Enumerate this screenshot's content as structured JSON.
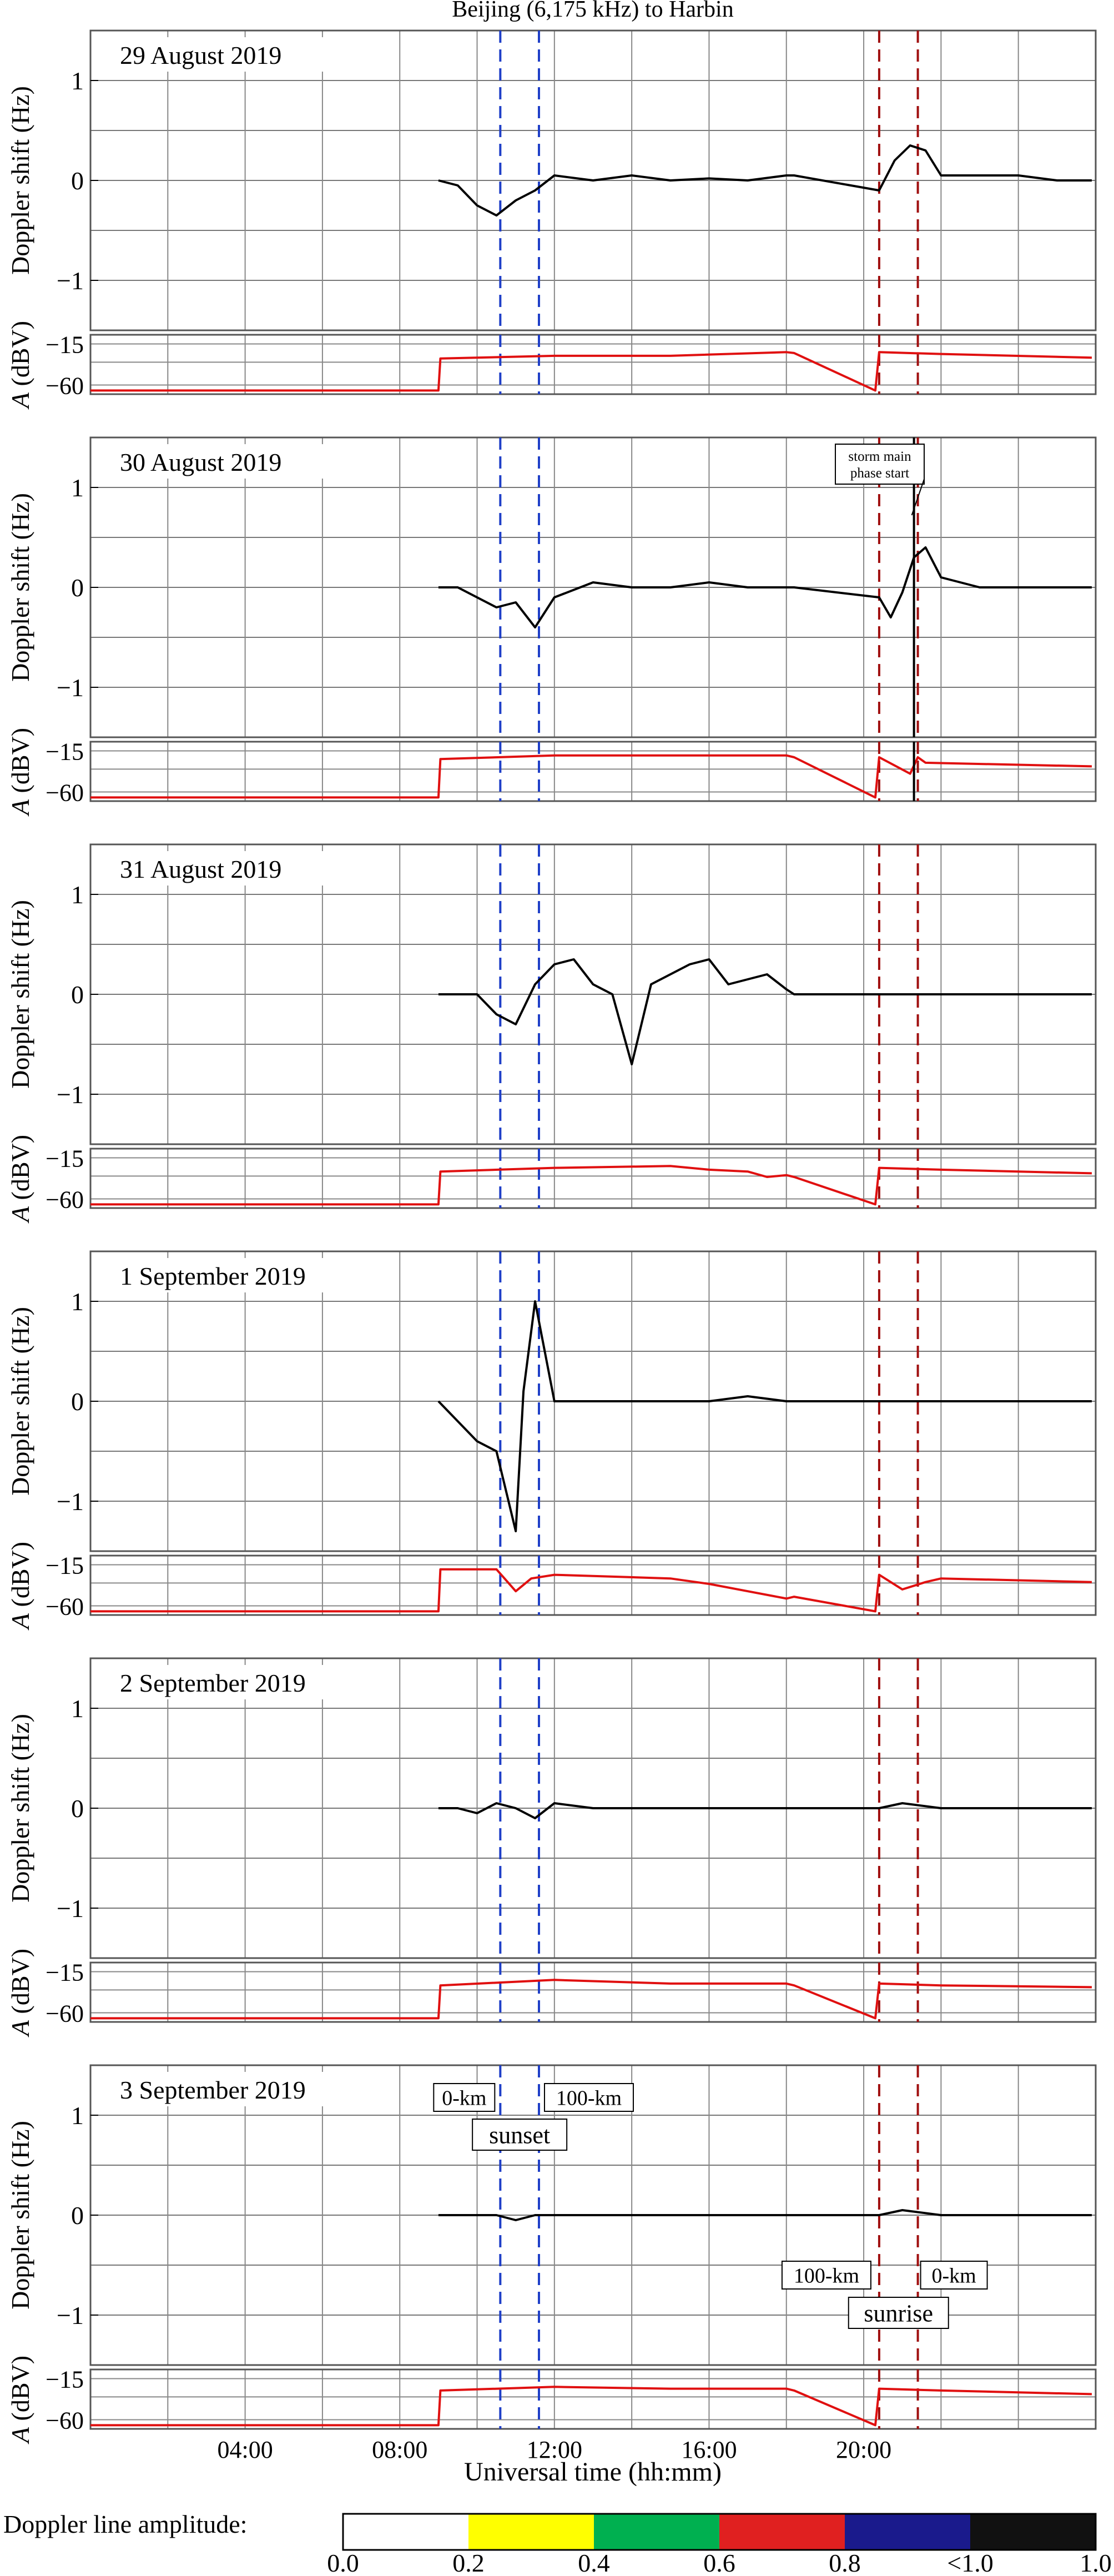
{
  "chart_data": {
    "type": "line",
    "title": "Beijing (6,175 kHz) to Harbin",
    "xlabel": "Universal time (hh:mm)",
    "xlim": [
      0,
      26
    ],
    "x_ticks": [
      {
        "value": 4,
        "label": "04:00"
      },
      {
        "value": 8,
        "label": "08:00"
      },
      {
        "value": 12,
        "label": "12:00"
      },
      {
        "value": 16,
        "label": "16:00"
      },
      {
        "value": 20,
        "label": "20:00"
      }
    ],
    "vertical_gridlines_every_hours": 2,
    "grid": true,
    "doppler_axis": {
      "ylabel": "Doppler shift (Hz)",
      "ylim": [
        -1.5,
        1.5
      ],
      "ticks": [
        {
          "value": 1,
          "label": "1"
        },
        {
          "value": 0,
          "label": "0"
        },
        {
          "value": -1,
          "label": "−1"
        }
      ]
    },
    "amplitude_axis": {
      "ylabel": "A (dBV)",
      "ylabel_prefix": "A",
      "ylabel_suffix": " (dBV)",
      "ylim": [
        -70,
        -5
      ],
      "ticks": [
        {
          "value": -15,
          "label": "−15"
        },
        {
          "value": -60,
          "label": "−60"
        }
      ]
    },
    "colorbar": {
      "label": "Doppler line amplitude:",
      "colors": [
        "#ffffff",
        "#ffff00",
        "#00b050",
        "#e02020",
        "#1a1a8c",
        "#111111"
      ],
      "tick_labels": [
        "0.0",
        "0.2",
        "0.4",
        "0.6",
        "0.8",
        "<1.0",
        "1.0"
      ]
    },
    "panels": [
      {
        "date": "29 August 2019",
        "sunset_0km": 10.6,
        "sunset_100km": 11.6,
        "sunrise_100km": 20.4,
        "sunrise_0km": 21.4,
        "doppler_series": {
          "x": [
            9,
            9.5,
            10,
            10.5,
            11,
            11.5,
            12,
            13,
            14,
            15,
            16,
            17,
            18,
            18.2,
            20.4,
            20.8,
            21.2,
            21.6,
            22,
            23,
            24,
            25,
            25.9
          ],
          "y": [
            0,
            -0.05,
            -0.25,
            -0.35,
            -0.2,
            -0.1,
            0.05,
            0,
            0.05,
            0,
            0.02,
            0,
            0.05,
            0.05,
            -0.1,
            0.2,
            0.35,
            0.3,
            0.05,
            0.05,
            0.05,
            0,
            0
          ]
        },
        "amplitude_series": {
          "x": [
            0,
            0.1,
            9,
            9.05,
            12,
            15,
            18,
            18.2,
            20.3,
            20.4,
            22,
            25.9
          ],
          "y": [
            -66,
            -66,
            -66,
            -31,
            -28,
            -28,
            -24,
            -25,
            -66,
            -24,
            -26,
            -30
          ]
        }
      },
      {
        "date": "30 August 2019",
        "sunset_0km": 10.6,
        "sunset_100km": 11.6,
        "sunrise_100km": 20.4,
        "sunrise_0km": 21.4,
        "annotation": {
          "text_lines": [
            "storm main",
            "phase start"
          ],
          "time": 21.3
        },
        "doppler_series": {
          "x": [
            9,
            9.5,
            10,
            10.5,
            11,
            11.5,
            12,
            13,
            14,
            15,
            16,
            17,
            18,
            18.2,
            20.4,
            20.7,
            21,
            21.3,
            21.6,
            22,
            23,
            24,
            25,
            25.9
          ],
          "y": [
            0,
            0,
            -0.1,
            -0.2,
            -0.15,
            -0.4,
            -0.1,
            0.05,
            0,
            0,
            0.05,
            0,
            0,
            0,
            -0.1,
            -0.3,
            -0.05,
            0.3,
            0.4,
            0.1,
            0,
            0,
            0,
            0
          ]
        },
        "amplitude_series": {
          "x": [
            0,
            0.1,
            9,
            9.05,
            12,
            15,
            18,
            18.2,
            20.3,
            20.4,
            21.2,
            21.4,
            21.6,
            25.9
          ],
          "y": [
            -66,
            -66,
            -66,
            -24,
            -20,
            -20,
            -20,
            -22,
            -66,
            -22,
            -40,
            -22,
            -28,
            -32
          ]
        }
      },
      {
        "date": "31 August 2019",
        "sunset_0km": 10.6,
        "sunset_100km": 11.6,
        "sunrise_100km": 20.4,
        "sunrise_0km": 21.4,
        "doppler_series": {
          "x": [
            9,
            9.5,
            10,
            10.5,
            11,
            11.5,
            12,
            12.5,
            13,
            13.5,
            14,
            14.5,
            15,
            15.5,
            16,
            16.5,
            17,
            17.5,
            18,
            18.2,
            20.4,
            21,
            22,
            23,
            24,
            25,
            25.9
          ],
          "y": [
            0,
            0,
            0,
            -0.2,
            -0.3,
            0.1,
            0.3,
            0.35,
            0.1,
            0,
            -0.7,
            0.1,
            0.2,
            0.3,
            0.35,
            0.1,
            0.15,
            0.2,
            0.05,
            0,
            0,
            0,
            0,
            0,
            0,
            0,
            0
          ]
        },
        "amplitude_series": {
          "x": [
            0,
            0.1,
            9,
            9.05,
            12,
            15,
            16,
            17,
            17.5,
            18,
            18.2,
            20.3,
            20.4,
            22,
            25.9
          ],
          "y": [
            -66,
            -66,
            -66,
            -30,
            -26,
            -24,
            -28,
            -30,
            -36,
            -34,
            -36,
            -66,
            -26,
            -28,
            -32
          ]
        }
      },
      {
        "date": "1 September 2019",
        "sunset_0km": 10.6,
        "sunset_100km": 11.6,
        "sunrise_100km": 20.4,
        "sunrise_0km": 21.4,
        "doppler_series": {
          "x": [
            9,
            9.5,
            10,
            10.5,
            11,
            11.2,
            11.5,
            12,
            13,
            14,
            15,
            16,
            17,
            18,
            18.2,
            20.4,
            21,
            22,
            23,
            24,
            25,
            25.9
          ],
          "y": [
            0,
            -0.2,
            -0.4,
            -0.5,
            -1.3,
            0.1,
            1.0,
            0,
            0,
            0,
            0,
            0,
            0.05,
            0,
            0,
            0,
            0,
            0,
            0,
            0,
            0,
            0
          ]
        },
        "amplitude_series": {
          "x": [
            0,
            0.1,
            9,
            9.05,
            10.5,
            11,
            11.4,
            12,
            15,
            16,
            17,
            18,
            18.2,
            20.3,
            20.4,
            21,
            21.6,
            22,
            25.9
          ],
          "y": [
            -66,
            -66,
            -66,
            -20,
            -20,
            -44,
            -30,
            -26,
            -30,
            -36,
            -44,
            -52,
            -50,
            -66,
            -26,
            -42,
            -34,
            -30,
            -34
          ]
        }
      },
      {
        "date": "2 September 2019",
        "sunset_0km": 10.6,
        "sunset_100km": 11.6,
        "sunrise_100km": 20.4,
        "sunrise_0km": 21.4,
        "doppler_series": {
          "x": [
            9,
            9.5,
            10,
            10.5,
            11,
            11.5,
            12,
            13,
            14,
            15,
            16,
            17,
            18,
            18.2,
            20.4,
            21,
            22,
            23,
            24,
            25,
            25.9
          ],
          "y": [
            0,
            0,
            -0.05,
            0.05,
            0,
            -0.1,
            0.05,
            0,
            0,
            0,
            0,
            0,
            0,
            0,
            0,
            0.05,
            0,
            0,
            0,
            0,
            0
          ]
        },
        "amplitude_series": {
          "x": [
            0,
            0.1,
            9,
            9.05,
            12,
            15,
            18,
            18.2,
            20.3,
            20.4,
            22,
            25.9
          ],
          "y": [
            -66,
            -66,
            -66,
            -30,
            -24,
            -28,
            -28,
            -30,
            -66,
            -28,
            -30,
            -32
          ]
        }
      },
      {
        "date": "3 September 2019",
        "sunset_0km": 10.6,
        "sunset_100km": 11.6,
        "sunrise_100km": 20.4,
        "sunrise_0km": 21.4,
        "labels": {
          "sunset_0km": "0-km",
          "sunset_100km": "100-km",
          "sunset": "sunset",
          "sunrise_100km": "100-km",
          "sunrise_0km": "0-km",
          "sunrise": "sunrise"
        },
        "doppler_series": {
          "x": [
            9,
            9.5,
            10,
            10.5,
            11,
            11.5,
            12,
            13,
            14,
            15,
            16,
            17,
            18,
            18.2,
            20.4,
            21,
            22,
            23,
            24,
            25,
            25.9
          ],
          "y": [
            0,
            0,
            0,
            0,
            -0.05,
            0,
            0,
            0,
            0,
            0,
            0,
            0,
            0,
            0,
            0,
            0.05,
            0,
            0,
            0,
            0,
            0
          ]
        },
        "amplitude_series": {
          "x": [
            0,
            0.1,
            9,
            9.05,
            12,
            15,
            18,
            18.2,
            20.3,
            20.4,
            22,
            25.9
          ],
          "y": [
            -66,
            -66,
            -66,
            -28,
            -24,
            -26,
            -26,
            -28,
            -66,
            -26,
            -28,
            -32
          ]
        }
      }
    ]
  }
}
